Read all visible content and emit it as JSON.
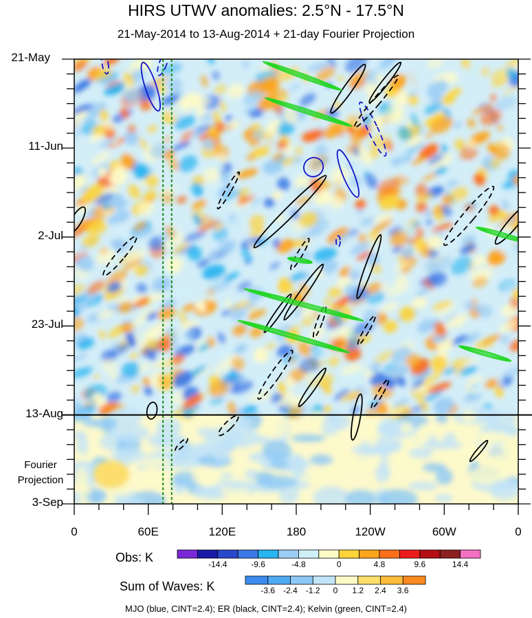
{
  "chart_data": {
    "type": "heatmap",
    "title": "HIRS UTWV anomalies: 2.5°N - 17.5°N",
    "subtitle": "21-May-2014 to 13-Aug-2014 + 21-day Fourier Projection",
    "x_axis": {
      "ticks": [
        {
          "lon": 0,
          "label": "0"
        },
        {
          "lon": 60,
          "label": "60E"
        },
        {
          "lon": 120,
          "label": "120E"
        },
        {
          "lon": 180,
          "label": "180"
        },
        {
          "lon": 240,
          "label": "120W"
        },
        {
          "lon": 300,
          "label": "60W"
        },
        {
          "lon": 360,
          "label": "0"
        }
      ],
      "range": [
        0,
        360
      ]
    },
    "y_axis": {
      "ticks": [
        {
          "day": 0,
          "label": "21-May"
        },
        {
          "day": 21,
          "label": "11-Jun"
        },
        {
          "day": 42,
          "label": "2-Jul"
        },
        {
          "day": 63,
          "label": "23-Jul"
        },
        {
          "day": 84,
          "label": "13-Aug"
        },
        {
          "day": 105,
          "label": "3-Sep"
        }
      ],
      "range_days": [
        0,
        105
      ],
      "observed_end_day": 84
    },
    "projection_label": [
      "Fourier",
      "Projection"
    ],
    "reference_lines_lon": [
      72,
      79
    ],
    "obs_colorbar": {
      "title": "Obs: K",
      "colors": [
        "#7a28d8",
        "#1a1aa8",
        "#2a48cc",
        "#3c78e6",
        "#27b4f0",
        "#9ccdf4",
        "#d0f0f8",
        "#fdfac8",
        "#fdd43a",
        "#fca41c",
        "#fb6e1a",
        "#ec1c1c",
        "#b40e14",
        "#8c2020",
        "#f470c0"
      ],
      "tick_labels": [
        "-14.4",
        "-9.6",
        "-4.8",
        "0",
        "4.8",
        "9.6",
        "14.4"
      ]
    },
    "waves_colorbar": {
      "title": "Sum of Waves: K",
      "colors": [
        "#3c8cf0",
        "#50aaf4",
        "#8cc8f6",
        "#c2e4f8",
        "#fdfac8",
        "#fdde6c",
        "#fcbc3c",
        "#f88a20"
      ],
      "tick_labels": [
        "-3.6",
        "-2.4",
        "-1.2",
        "0",
        "1.2",
        "2.4",
        "3.6"
      ]
    },
    "contours": [
      {
        "wave": "MJO",
        "color": "#1414c8",
        "dashed": false,
        "lon": 62,
        "day": 6.5,
        "rx_deg": 4.5,
        "ry_days": 6,
        "tilt_deg": -18
      },
      {
        "wave": "MJO",
        "color": "#1414c8",
        "dashed": false,
        "lon": 222,
        "day": 27,
        "rx_deg": 4.5,
        "ry_days": 6,
        "tilt_deg": -22
      },
      {
        "wave": "MJO",
        "color": "#1414c8",
        "dashed": false,
        "lon": 194,
        "day": 25.5,
        "rx_deg": 8,
        "ry_days": 2.2,
        "tilt_deg": -35
      },
      {
        "wave": "MJO",
        "color": "#1414c8",
        "dashed": true,
        "lon": 242,
        "day": 16.5,
        "rx_deg": 4,
        "ry_days": 7,
        "tilt_deg": -25
      },
      {
        "wave": "MJO",
        "color": "#1414c8",
        "dashed": true,
        "lon": 25,
        "day": 1,
        "rx_deg": 2.5,
        "ry_days": 2.5,
        "tilt_deg": -10
      },
      {
        "wave": "MJO",
        "color": "#1414c8",
        "dashed": true,
        "lon": 72,
        "day": 1,
        "rx_deg": 3,
        "ry_days": 3,
        "tilt_deg": 20
      },
      {
        "wave": "MJO",
        "color": "#1414c8",
        "dashed": true,
        "lon": 214,
        "day": 43,
        "rx_deg": 1.5,
        "ry_days": 1.3,
        "tilt_deg": 0
      },
      {
        "wave": "ER",
        "color": "#000000",
        "dashed": false,
        "lon": 222,
        "day": 7,
        "rx_deg": 3.5,
        "ry_days": 7,
        "tilt_deg": 35
      },
      {
        "wave": "ER",
        "color": "#000000",
        "dashed": false,
        "lon": 252,
        "day": 5.5,
        "rx_deg": 2.5,
        "ry_days": 6,
        "tilt_deg": 38
      },
      {
        "wave": "ER",
        "color": "#000000",
        "dashed": false,
        "lon": 175,
        "day": 36,
        "rx_deg": 4,
        "ry_days": 12,
        "tilt_deg": 45
      },
      {
        "wave": "ER",
        "color": "#000000",
        "dashed": false,
        "lon": 186,
        "day": 55,
        "rx_deg": 2.8,
        "ry_days": 8,
        "tilt_deg": 35
      },
      {
        "wave": "ER",
        "color": "#000000",
        "dashed": false,
        "lon": 165,
        "day": 60,
        "rx_deg": 2.2,
        "ry_days": 5.5,
        "tilt_deg": 35
      },
      {
        "wave": "ER",
        "color": "#000000",
        "dashed": false,
        "lon": 239,
        "day": 49,
        "rx_deg": 3,
        "ry_days": 8,
        "tilt_deg": 20
      },
      {
        "wave": "ER",
        "color": "#000000",
        "dashed": false,
        "lon": 193,
        "day": 77.5,
        "rx_deg": 2.5,
        "ry_days": 5.5,
        "tilt_deg": 35
      },
      {
        "wave": "ER",
        "color": "#000000",
        "dashed": false,
        "lon": 2,
        "day": 38,
        "rx_deg": 4,
        "ry_days": 3.5,
        "tilt_deg": 30
      },
      {
        "wave": "ER",
        "color": "#000000",
        "dashed": false,
        "lon": 355,
        "day": 39,
        "rx_deg": 4,
        "ry_days": 6,
        "tilt_deg": 40
      },
      {
        "wave": "ER",
        "color": "#000000",
        "dashed": false,
        "lon": 229,
        "day": 84.5,
        "rx_deg": 3,
        "ry_days": 5.5,
        "tilt_deg": 10
      },
      {
        "wave": "ER",
        "color": "#000000",
        "dashed": false,
        "lon": 328,
        "day": 92.5,
        "rx_deg": 1.8,
        "ry_days": 3.2,
        "tilt_deg": 40
      },
      {
        "wave": "ER",
        "color": "#000000",
        "dashed": false,
        "lon": 63,
        "day": 83,
        "rx_deg": 4,
        "ry_days": 2,
        "tilt_deg": 10
      },
      {
        "wave": "ER",
        "color": "#000000",
        "dashed": true,
        "lon": 245,
        "day": 10,
        "rx_deg": 3,
        "ry_days": 8,
        "tilt_deg": 40
      },
      {
        "wave": "ER",
        "color": "#000000",
        "dashed": true,
        "lon": 125,
        "day": 31,
        "rx_deg": 2.2,
        "ry_days": 5,
        "tilt_deg": 30
      },
      {
        "wave": "ER",
        "color": "#000000",
        "dashed": true,
        "lon": 37,
        "day": 46.5,
        "rx_deg": 3.5,
        "ry_days": 6,
        "tilt_deg": 40
      },
      {
        "wave": "ER",
        "color": "#000000",
        "dashed": true,
        "lon": 183,
        "day": 46,
        "rx_deg": 2.2,
        "ry_days": 4.2,
        "tilt_deg": 30
      },
      {
        "wave": "ER",
        "color": "#000000",
        "dashed": true,
        "lon": 199,
        "day": 62,
        "rx_deg": 2.2,
        "ry_days": 4,
        "tilt_deg": 20
      },
      {
        "wave": "ER",
        "color": "#000000",
        "dashed": true,
        "lon": 237,
        "day": 64,
        "rx_deg": 2,
        "ry_days": 4,
        "tilt_deg": 30
      },
      {
        "wave": "ER",
        "color": "#000000",
        "dashed": true,
        "lon": 163,
        "day": 74.5,
        "rx_deg": 3.5,
        "ry_days": 7,
        "tilt_deg": 35
      },
      {
        "wave": "ER",
        "color": "#000000",
        "dashed": true,
        "lon": 248,
        "day": 79,
        "rx_deg": 2,
        "ry_days": 4,
        "tilt_deg": 30
      },
      {
        "wave": "ER",
        "color": "#000000",
        "dashed": true,
        "lon": 320,
        "day": 37,
        "rx_deg": 4.5,
        "ry_days": 9,
        "tilt_deg": 40
      },
      {
        "wave": "ER",
        "color": "#000000",
        "dashed": true,
        "lon": 125,
        "day": 86.5,
        "rx_deg": 3,
        "ry_days": 3.2,
        "tilt_deg": 45
      },
      {
        "wave": "ER",
        "color": "#000000",
        "dashed": true,
        "lon": 87,
        "day": 91,
        "rx_deg": 1.8,
        "ry_days": 2,
        "tilt_deg": 45
      },
      {
        "wave": "Kelvin",
        "color": "#22d622",
        "dashed": false,
        "lon": 185,
        "day": 4,
        "rx_deg": 34,
        "ry_days": 0.5,
        "tilt_deg": 20
      },
      {
        "wave": "Kelvin",
        "color": "#22d622",
        "dashed": false,
        "lon": 190,
        "day": 12.5,
        "rx_deg": 37,
        "ry_days": 0.5,
        "tilt_deg": 18
      },
      {
        "wave": "Kelvin",
        "color": "#22d622",
        "dashed": false,
        "lon": 186,
        "day": 58,
        "rx_deg": 50,
        "ry_days": 0.5,
        "tilt_deg": 15
      },
      {
        "wave": "Kelvin",
        "color": "#22d622",
        "dashed": false,
        "lon": 178,
        "day": 65.5,
        "rx_deg": 47,
        "ry_days": 0.5,
        "tilt_deg": 16
      },
      {
        "wave": "Kelvin",
        "color": "#22d622",
        "dashed": false,
        "lon": 347,
        "day": 41.5,
        "rx_deg": 22,
        "ry_days": 0.5,
        "tilt_deg": 16
      },
      {
        "wave": "Kelvin",
        "color": "#22d622",
        "dashed": false,
        "lon": 333,
        "day": 69.5,
        "rx_deg": 22,
        "ry_days": 0.5,
        "tilt_deg": 16
      },
      {
        "wave": "Kelvin",
        "color": "#22d622",
        "dashed": false,
        "lon": 183,
        "day": 47.5,
        "rx_deg": 10,
        "ry_days": 0.3,
        "tilt_deg": 10
      }
    ]
  },
  "footer_note": "MJO (blue, CINT=2.4); ER (black, CINT=2.4); Kelvin (green, CINT=2.4)"
}
